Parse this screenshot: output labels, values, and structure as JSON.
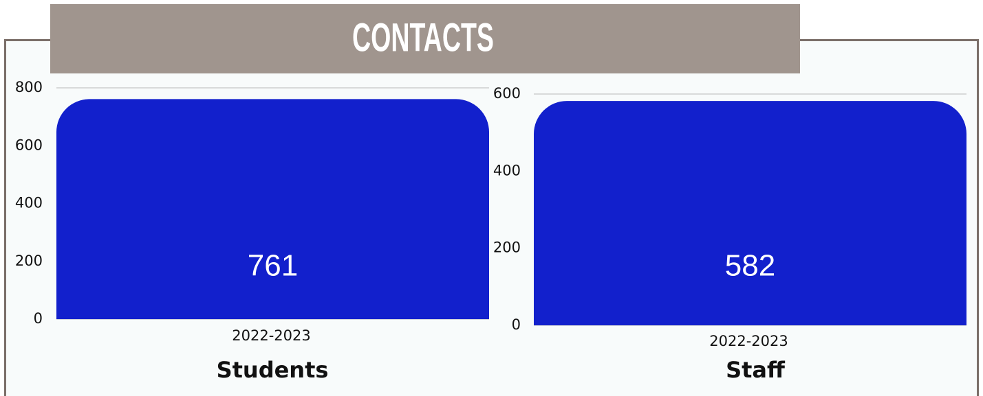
{
  "header": {
    "title": "CONTACTS"
  },
  "chart_data": [
    {
      "type": "bar",
      "title": "Students",
      "categories": [
        "2022-2023"
      ],
      "values": [
        761
      ],
      "color": "#1220cc",
      "ylim": [
        0,
        800
      ],
      "yticks": [
        0,
        200,
        400,
        600,
        800
      ],
      "grid": true
    },
    {
      "type": "bar",
      "title": "Staff",
      "categories": [
        "2022-2023"
      ],
      "values": [
        582
      ],
      "color": "#1220cc",
      "ylim": [
        0,
        600
      ],
      "yticks": [
        0,
        200,
        400,
        600
      ],
      "grid": true
    }
  ]
}
